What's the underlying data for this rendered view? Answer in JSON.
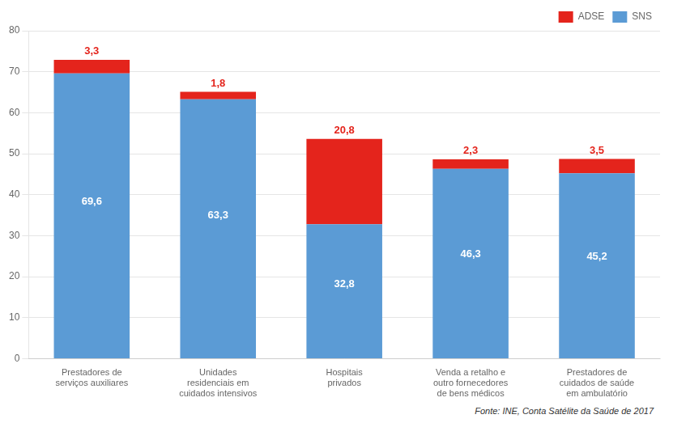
{
  "chart_data": {
    "type": "bar",
    "stacked": true,
    "categories": [
      "Prestadores de\nserviços auxiliares",
      "Unidades\nresidenciais em\ncuidados intensivos",
      "Hospitais\nprivados",
      "Venda a retalho e\noutro fornecedores\nde bens médicos",
      "Prestadores de\ncuidados de saúde\nem ambulatório"
    ],
    "series": [
      {
        "name": "SNS",
        "color": "#5b9bd5",
        "values": [
          69.6,
          63.3,
          32.8,
          46.3,
          45.2
        ],
        "value_labels": [
          "69,6",
          "63,3",
          "32,8",
          "46,3",
          "45,2"
        ]
      },
      {
        "name": "ADSE",
        "color": "#e4241c",
        "values": [
          3.3,
          1.8,
          20.8,
          2.3,
          3.5
        ],
        "value_labels": [
          "3,3",
          "1,8",
          "20,8",
          "2,3",
          "3,5"
        ]
      }
    ],
    "ylim": [
      0,
      80
    ],
    "yticks": [
      0,
      10,
      20,
      30,
      40,
      50,
      60,
      70,
      80
    ],
    "grid": true,
    "legend": "upper right",
    "data_labels": true,
    "annotations": [
      "Fonte: INE, Conta Satélite da Saúde de 2017"
    ]
  }
}
